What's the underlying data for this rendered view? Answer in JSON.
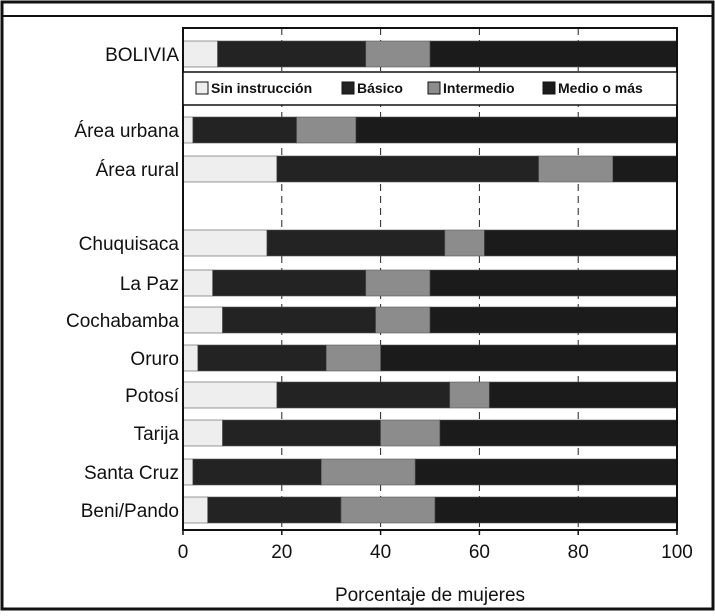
{
  "chart_data": {
    "type": "bar",
    "orientation": "horizontal",
    "stacked": true,
    "xlabel": "Porcentaje de mujeres",
    "xlim": [
      0,
      100
    ],
    "xticks": [
      0,
      20,
      40,
      60,
      80,
      100
    ],
    "grid": "vertical dashed",
    "legend_position": "top, below first bar",
    "categories": [
      "BOLIVIA",
      "Área urbana",
      "Área rural",
      "Chuquisaca",
      "La Paz",
      "Cochabamba",
      "Oruro",
      "Potosí",
      "Tarija",
      "Santa Cruz",
      "Beni/Pando"
    ],
    "series": [
      {
        "name": "Sin instrucción",
        "color": "#eeeeee",
        "values": [
          7,
          2,
          19,
          17,
          6,
          8,
          3,
          19,
          8,
          2,
          5
        ]
      },
      {
        "name": "Básico",
        "color": "#232323",
        "values": [
          30,
          21,
          53,
          36,
          31,
          31,
          26,
          35,
          32,
          26,
          27
        ]
      },
      {
        "name": "Intermedio",
        "color": "#8c8c8c",
        "values": [
          13,
          12,
          15,
          8,
          13,
          11,
          11,
          8,
          12,
          19,
          19
        ]
      },
      {
        "name": "Medio o más",
        "color": "#1b1b1b",
        "values": [
          50,
          65,
          13,
          39,
          50,
          50,
          60,
          38,
          48,
          53,
          49
        ]
      }
    ]
  }
}
